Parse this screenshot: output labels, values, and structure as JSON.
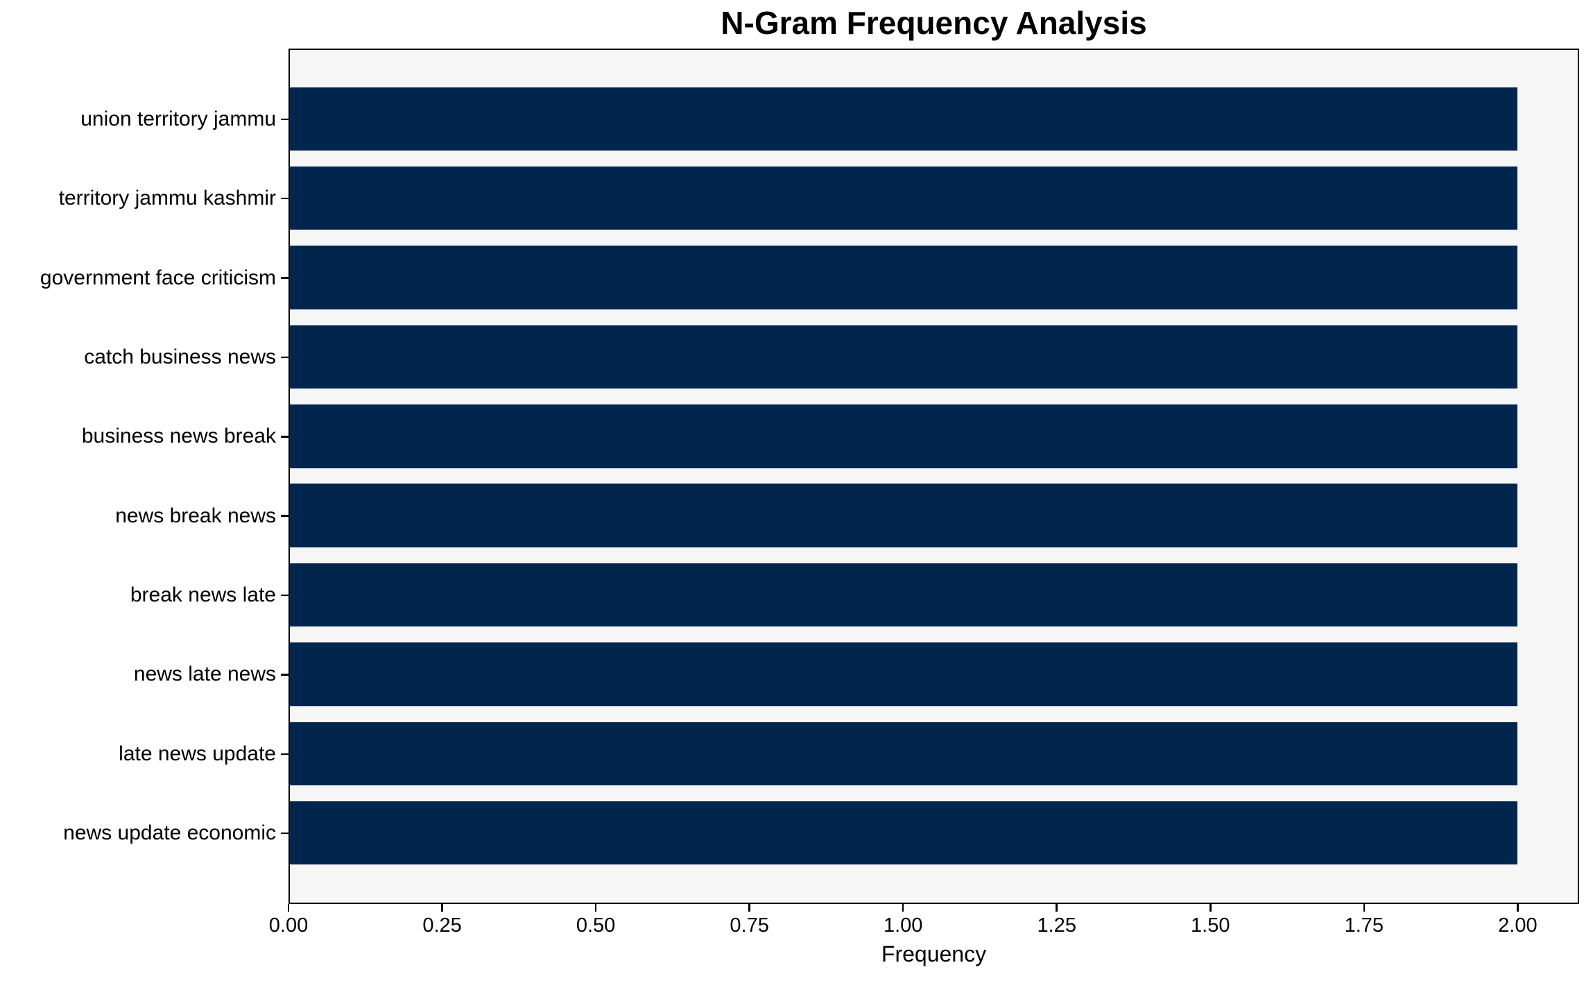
{
  "chart_data": {
    "type": "bar",
    "orientation": "horizontal",
    "title": "N-Gram Frequency Analysis",
    "xlabel": "Frequency",
    "ylabel": "",
    "categories": [
      "union territory jammu",
      "territory jammu kashmir",
      "government face criticism",
      "catch business news",
      "business news break",
      "news break news",
      "break news late",
      "news late news",
      "late news update",
      "news update economic"
    ],
    "values": [
      2.0,
      2.0,
      2.0,
      2.0,
      2.0,
      2.0,
      2.0,
      2.0,
      2.0,
      2.0
    ],
    "xlim": [
      0,
      2.1
    ],
    "xticks": [
      0.0,
      0.25,
      0.5,
      0.75,
      1.0,
      1.25,
      1.5,
      1.75,
      2.0
    ],
    "xtick_labels": [
      "0.00",
      "0.25",
      "0.50",
      "0.75",
      "1.00",
      "1.25",
      "1.50",
      "1.75",
      "2.00"
    ],
    "bar_color": "#02254e",
    "plot_background": "#f6f6f6",
    "figure_background": "#ffffff",
    "spine_color": "#000000",
    "grid": false,
    "legend": null
  }
}
